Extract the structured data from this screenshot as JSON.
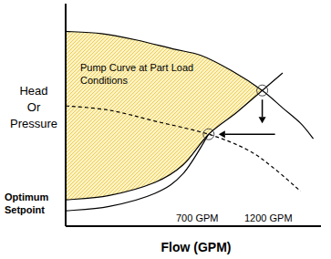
{
  "chart_data": {
    "type": "line",
    "xlabel": "Flow (GPM)",
    "ylabel": [
      "Head",
      "Or",
      "Pressure"
    ],
    "xlim": [
      0,
      100
    ],
    "ylim": [
      0,
      100
    ],
    "xticks": [],
    "yticks": [],
    "tick_labels": false,
    "grid": false,
    "series": [
      {
        "x": [
          0,
          14,
          28,
          42,
          53,
          65,
          77,
          85,
          92,
          97
        ],
        "values": [
          89,
          88,
          85,
          81,
          78,
          71,
          62,
          54,
          47,
          40
        ],
        "color": "#000000",
        "line_style": "solid"
      },
      {
        "x": [
          0,
          17,
          35,
          56,
          71,
          81,
          92
        ],
        "values": [
          55,
          53,
          48,
          42,
          35,
          27,
          16
        ],
        "color": "#000000",
        "line_style": "dashed"
      },
      {
        "x": [
          0,
          17,
          35,
          46,
          56,
          67,
          77,
          85
        ],
        "values": [
          12,
          14,
          20,
          28,
          42,
          52,
          62,
          70
        ],
        "color": "#000000",
        "line_style": "solid"
      },
      {
        "x": [
          0,
          17,
          35,
          46,
          56
        ],
        "values": [
          7,
          9,
          15,
          24,
          42
        ],
        "color": "#000000",
        "line_style": "solid"
      }
    ],
    "operating_points": {
      "x": [
        77,
        56
      ],
      "y": [
        62,
        42
      ]
    },
    "annotations": [
      [
        "Pump Curve at Part Load",
        "Conditions"
      ],
      [
        "Optimum",
        "Setpoint"
      ],
      [
        "700 GPM"
      ],
      [
        "1200 GPM"
      ]
    ]
  }
}
